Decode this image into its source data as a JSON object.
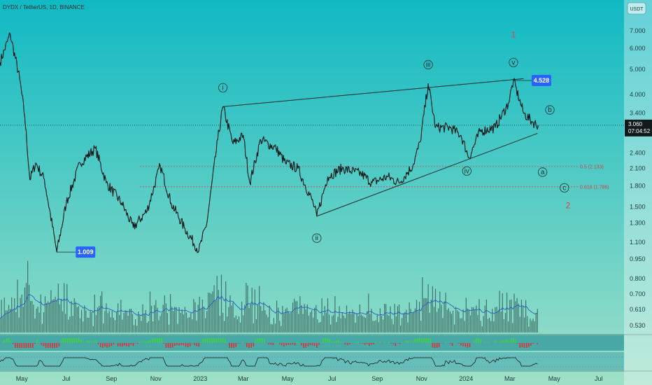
{
  "header": {
    "symbol_title": "DYDX / TetherUS, 1D, BINANCE",
    "currency_button": "USDT"
  },
  "colors": {
    "bg_top": "#10b9c4",
    "bg_bottom": "#9ee0c6",
    "accent": "#2962ff",
    "fib": "#e04040",
    "candle": "#0b1414",
    "volume": "#37625c",
    "volume_ma": "#2b5cc4",
    "osc_green": "#3fd43f",
    "osc_red": "#e03030"
  },
  "chart_data": {
    "type": "line",
    "title": "DYDX / TetherUS, 1D, BINANCE",
    "y_scale": "log",
    "ylim": [
      0.49,
      8.2
    ],
    "y_ticks": [
      "7.000",
      "6.000",
      "5.000",
      "4.000",
      "3.400",
      "2.900",
      "2.400",
      "2.100",
      "1.800",
      "1.500",
      "1.300",
      "1.100",
      "0.950",
      "0.800",
      "0.700",
      "0.610",
      "0.530"
    ],
    "x_ticks": [
      "May",
      "Jul",
      "Sep",
      "Nov",
      "2023",
      "Mar",
      "May",
      "Jul",
      "Sep",
      "Nov",
      "2024",
      "Mar",
      "May",
      "Jul"
    ],
    "series": [
      {
        "values": [
          [
            "2022-04-01",
            5.3
          ],
          [
            "2022-04-15",
            6.8
          ],
          [
            "2022-04-28",
            4.6
          ],
          [
            "2022-05-05",
            3.3
          ],
          [
            "2022-05-12",
            1.9
          ],
          [
            "2022-05-20",
            2.2
          ],
          [
            "2022-06-01",
            1.9
          ],
          [
            "2022-06-18",
            1.009
          ],
          [
            "2022-07-01",
            1.55
          ],
          [
            "2022-07-20",
            2.2
          ],
          [
            "2022-08-10",
            2.5
          ],
          [
            "2022-08-25",
            1.85
          ],
          [
            "2022-09-15",
            1.55
          ],
          [
            "2022-10-01",
            1.25
          ],
          [
            "2022-10-20",
            1.45
          ],
          [
            "2022-11-07",
            2.15
          ],
          [
            "2022-11-22",
            1.55
          ],
          [
            "2022-12-10",
            1.25
          ],
          [
            "2022-12-30",
            1.02
          ],
          [
            "2023-01-10",
            1.3
          ],
          [
            "2023-01-25",
            2.7
          ],
          [
            "2023-02-01",
            3.6
          ],
          [
            "2023-02-15",
            2.6
          ],
          [
            "2023-03-01",
            2.8
          ],
          [
            "2023-03-10",
            1.85
          ],
          [
            "2023-03-25",
            2.7
          ],
          [
            "2023-04-15",
            2.5
          ],
          [
            "2023-04-28",
            2.2
          ],
          [
            "2023-05-15",
            2.1
          ],
          [
            "2023-06-05",
            1.55
          ],
          [
            "2023-06-10",
            1.38
          ],
          [
            "2023-06-25",
            1.95
          ],
          [
            "2023-07-15",
            2.1
          ],
          [
            "2023-08-10",
            2.0
          ],
          [
            "2023-08-25",
            1.85
          ],
          [
            "2023-09-15",
            1.95
          ],
          [
            "2023-10-01",
            1.85
          ],
          [
            "2023-10-20",
            2.15
          ],
          [
            "2023-10-30",
            2.65
          ],
          [
            "2023-11-10",
            4.4
          ],
          [
            "2023-11-20",
            3.0
          ],
          [
            "2023-12-10",
            3.0
          ],
          [
            "2023-12-25",
            2.8
          ],
          [
            "2024-01-05",
            2.3
          ],
          [
            "2024-01-20",
            2.9
          ],
          [
            "2024-02-10",
            3.0
          ],
          [
            "2024-02-28",
            3.7
          ],
          [
            "2024-03-06",
            4.528
          ],
          [
            "2024-03-20",
            3.4
          ],
          [
            "2024-04-01",
            3.15
          ],
          [
            "2024-04-09",
            3.06
          ]
        ]
      }
    ],
    "current_price": "3.060",
    "countdown": "07:04:52",
    "high_label": "4.528",
    "low_label": "1.009",
    "fib_levels": [
      {
        "label": "0.5 (2.133)",
        "price": 2.133
      },
      {
        "label": "0.618 (1.786)",
        "price": 1.786
      }
    ],
    "wave_labels": [
      {
        "text": "i",
        "date": "2023-02-01",
        "price": 4.25
      },
      {
        "text": "ii",
        "date": "2023-06-10",
        "price": 1.14
      },
      {
        "text": "iii",
        "date": "2023-11-10",
        "price": 5.2
      },
      {
        "text": "iv",
        "date": "2024-01-02",
        "price": 2.05
      },
      {
        "text": "v",
        "date": "2024-03-06",
        "price": 5.3
      },
      {
        "text": "b",
        "date": "2024-04-25",
        "price": 3.5
      },
      {
        "text": "a",
        "date": "2024-04-15",
        "price": 2.03
      },
      {
        "text": "c",
        "date": "2024-05-15",
        "price": 1.77
      }
    ],
    "wave_counts": [
      {
        "text": "1",
        "date": "2024-03-06",
        "price": 6.6
      },
      {
        "text": "2",
        "date": "2024-05-20",
        "price": 1.48
      }
    ],
    "trendlines": [
      {
        "from": [
          "2023-02-01",
          3.6
        ],
        "to": [
          "2024-03-20",
          4.6
        ]
      },
      {
        "from": [
          "2023-06-10",
          1.38
        ],
        "to": [
          "2024-04-08",
          2.85
        ]
      }
    ]
  }
}
